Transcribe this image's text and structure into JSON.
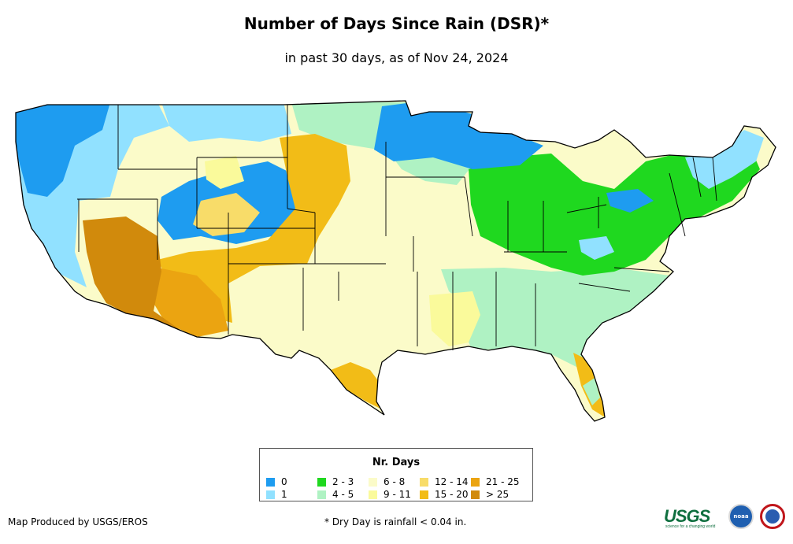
{
  "header": {
    "title": "Number of Days Since Rain (DSR)*",
    "subtitle": "in past 30 days, as of Nov 24, 2024"
  },
  "legend": {
    "title": "Nr. Days",
    "items": [
      {
        "label": "0",
        "color": "#1e9cf0"
      },
      {
        "label": "1",
        "color": "#91e1ff"
      },
      {
        "label": "2 - 3",
        "color": "#1fd81f"
      },
      {
        "label": "4 - 5",
        "color": "#aff2c3"
      },
      {
        "label": "6 - 8",
        "color": "#fbfbc9"
      },
      {
        "label": "9 - 11",
        "color": "#fafa9b"
      },
      {
        "label": "12 - 14",
        "color": "#f8dc69"
      },
      {
        "label": "15 - 20",
        "color": "#f2bc17"
      },
      {
        "label": "21 - 25",
        "color": "#eba411"
      },
      {
        "label": "> 25",
        "color": "#d18a0c"
      }
    ]
  },
  "footer": {
    "credit": "Map Produced by USGS/EROS",
    "footnote": "* Dry Day is rainfall < 0.04 in."
  },
  "logos": {
    "usgs": "USGS",
    "usgs_tagline": "science for a changing world",
    "noaa": "noaa"
  }
}
